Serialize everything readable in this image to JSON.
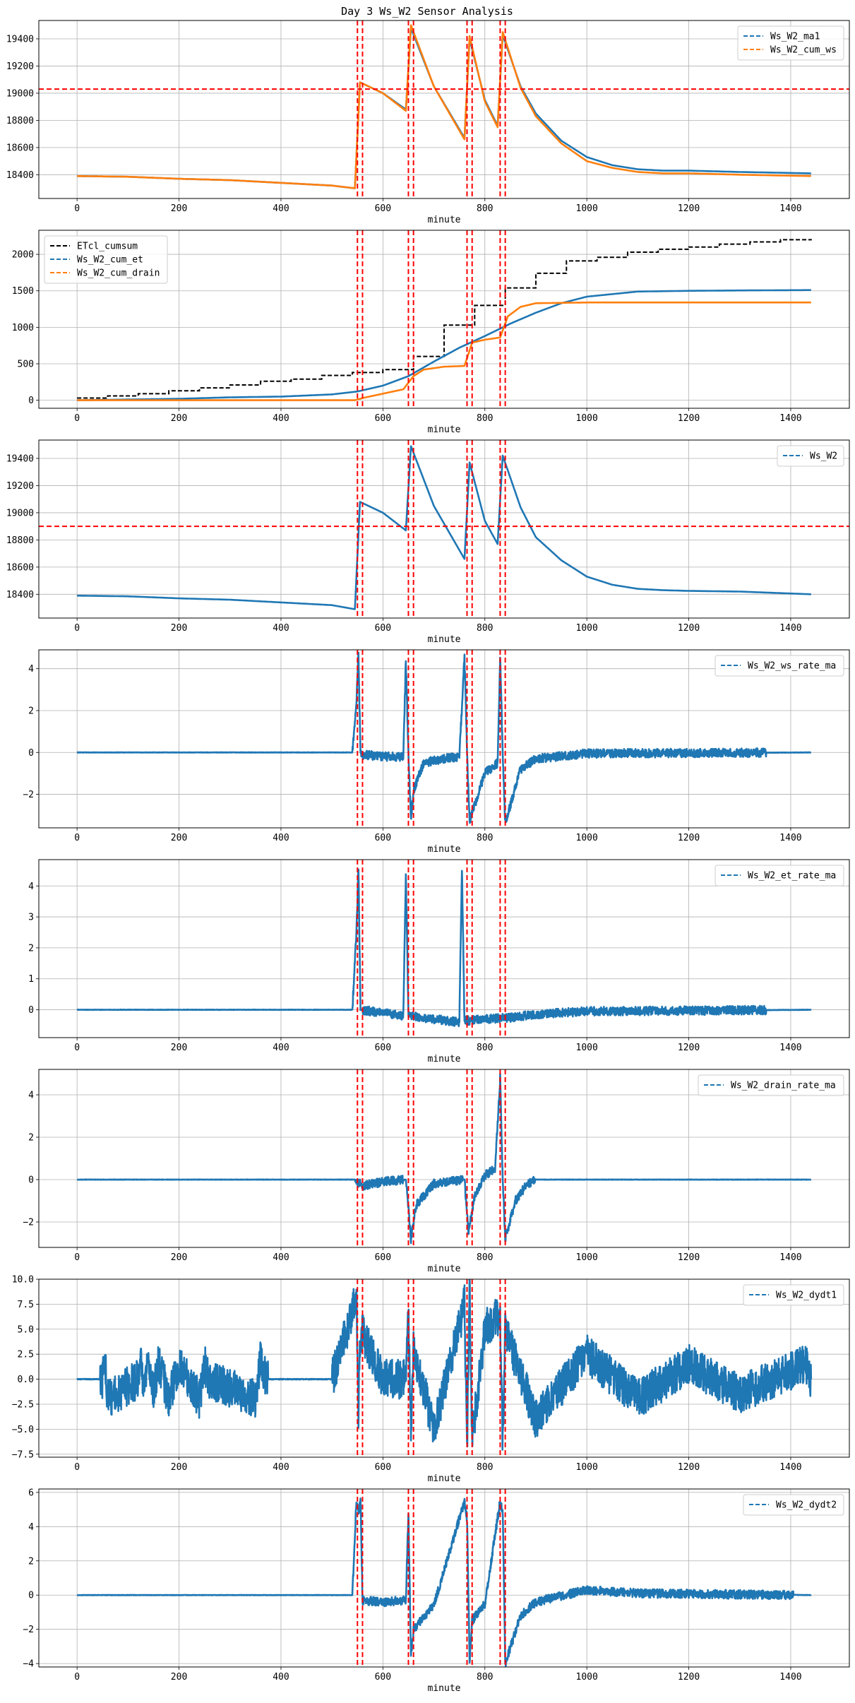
{
  "figure": {
    "title": "Day 3 Ws_W2 Sensor Analysis"
  },
  "colors": {
    "blue": "#1f77b4",
    "orange": "#ff7f0e",
    "black": "#000000",
    "red": "#ff0000",
    "grid": "#b0b0b0"
  },
  "chart_data": [
    {
      "type": "line",
      "xlabel": "minute",
      "xticks": [
        0,
        200,
        400,
        600,
        800,
        1000,
        1200,
        1400
      ],
      "xlim": [
        -75,
        1515
      ],
      "ylim": [
        18225,
        19535
      ],
      "yticks": [
        18400,
        18600,
        18800,
        19000,
        19200,
        19400
      ],
      "ytick_labels": [
        "18400",
        "18600",
        "18800",
        "19000",
        "19200",
        "19400"
      ],
      "legend": "top-right",
      "vlines": [
        550,
        560,
        650,
        660,
        765,
        775,
        830,
        840
      ],
      "hline": 19030,
      "series": [
        {
          "name": "Ws_W2_ma1",
          "color": "blue",
          "style": "dashed",
          "x": [
            0,
            100,
            200,
            300,
            400,
            500,
            545,
            555,
            600,
            645,
            655,
            700,
            760,
            770,
            800,
            825,
            835,
            870,
            900,
            950,
            1000,
            1050,
            1100,
            1150,
            1200,
            1300,
            1440
          ],
          "y": [
            18390,
            18385,
            18370,
            18360,
            18340,
            18320,
            18300,
            19080,
            19000,
            18880,
            19480,
            19050,
            18670,
            19400,
            18950,
            18760,
            19430,
            19050,
            18850,
            18650,
            18530,
            18470,
            18440,
            18430,
            18430,
            18420,
            18410
          ]
        },
        {
          "name": "Ws_W2_cum_ws",
          "color": "orange",
          "style": "dashed",
          "x": [
            0,
            100,
            200,
            300,
            400,
            500,
            545,
            555,
            600,
            645,
            655,
            700,
            760,
            770,
            800,
            825,
            835,
            870,
            900,
            950,
            1000,
            1050,
            1100,
            1150,
            1200,
            1300,
            1440
          ],
          "y": [
            18390,
            18385,
            18370,
            18360,
            18340,
            18320,
            18300,
            19080,
            19000,
            18870,
            19500,
            19050,
            18660,
            19420,
            18940,
            18750,
            19450,
            19040,
            18830,
            18630,
            18500,
            18450,
            18420,
            18410,
            18410,
            18400,
            18390
          ]
        }
      ]
    },
    {
      "type": "line",
      "xlabel": "minute",
      "xticks": [
        0,
        200,
        400,
        600,
        800,
        1000,
        1200,
        1400
      ],
      "xlim": [
        -75,
        1515
      ],
      "ylim": [
        -110,
        2330
      ],
      "yticks": [
        0,
        500,
        1000,
        1500,
        2000
      ],
      "ytick_labels": [
        "0",
        "500",
        "1000",
        "1500",
        "2000"
      ],
      "legend": "top-left",
      "vlines": [
        550,
        560,
        650,
        660,
        765,
        775,
        830,
        840
      ],
      "series": [
        {
          "name": "ETcl_cumsum",
          "color": "black",
          "style": "steps",
          "x": [
            0,
            60,
            120,
            180,
            240,
            300,
            360,
            420,
            480,
            540,
            600,
            660,
            720,
            780,
            840,
            900,
            960,
            1020,
            1080,
            1140,
            1200,
            1260,
            1320,
            1380,
            1440
          ],
          "y": [
            30,
            60,
            90,
            130,
            170,
            210,
            260,
            290,
            340,
            380,
            420,
            600,
            1030,
            1300,
            1540,
            1740,
            1910,
            1960,
            2030,
            2070,
            2100,
            2140,
            2170,
            2200,
            2210
          ]
        },
        {
          "name": "Ws_W2_cum_et",
          "color": "blue",
          "style": "dashed",
          "x": [
            0,
            100,
            200,
            300,
            400,
            500,
            550,
            600,
            650,
            700,
            750,
            800,
            850,
            900,
            950,
            1000,
            1100,
            1200,
            1300,
            1440
          ],
          "y": [
            0,
            10,
            20,
            40,
            50,
            80,
            120,
            200,
            330,
            530,
            720,
            880,
            1050,
            1200,
            1330,
            1420,
            1490,
            1500,
            1505,
            1510
          ]
        },
        {
          "name": "Ws_W2_cum_drain",
          "color": "orange",
          "style": "dashed",
          "x": [
            0,
            545,
            560,
            640,
            660,
            680,
            720,
            760,
            775,
            800,
            830,
            845,
            870,
            900,
            1000,
            1440
          ],
          "y": [
            0,
            0,
            30,
            150,
            330,
            420,
            460,
            470,
            790,
            830,
            860,
            1150,
            1280,
            1330,
            1340,
            1340
          ]
        }
      ]
    },
    {
      "type": "line",
      "xlabel": "minute",
      "xticks": [
        0,
        200,
        400,
        600,
        800,
        1000,
        1200,
        1400
      ],
      "xlim": [
        -75,
        1515
      ],
      "ylim": [
        18225,
        19535
      ],
      "yticks": [
        18400,
        18600,
        18800,
        19000,
        19200,
        19400
      ],
      "ytick_labels": [
        "18400",
        "18600",
        "18800",
        "19000",
        "19200",
        "19400"
      ],
      "legend": "top-right",
      "vlines": [
        550,
        560,
        650,
        660,
        765,
        775,
        830,
        840
      ],
      "hline": 18900,
      "series": [
        {
          "name": "Ws_W2",
          "color": "blue",
          "style": "dashed",
          "x": [
            0,
            100,
            200,
            300,
            400,
            500,
            545,
            555,
            600,
            645,
            655,
            700,
            760,
            770,
            800,
            825,
            835,
            870,
            900,
            950,
            1000,
            1050,
            1100,
            1150,
            1200,
            1300,
            1440
          ],
          "y": [
            18390,
            18385,
            18370,
            18360,
            18340,
            18320,
            18290,
            19080,
            19000,
            18870,
            19490,
            19050,
            18660,
            19370,
            18940,
            18770,
            19420,
            19040,
            18820,
            18650,
            18530,
            18470,
            18440,
            18430,
            18425,
            18420,
            18400
          ]
        }
      ]
    },
    {
      "type": "line",
      "xlabel": "minute",
      "xticks": [
        0,
        200,
        400,
        600,
        800,
        1000,
        1200,
        1400
      ],
      "xlim": [
        -75,
        1515
      ],
      "ylim": [
        -3.6,
        4.9
      ],
      "yticks": [
        -2,
        0,
        2,
        4
      ],
      "ytick_labels": [
        "−2",
        "0",
        "2",
        "4"
      ],
      "legend": "top-right",
      "vlines": [
        550,
        560,
        650,
        660,
        765,
        775,
        830,
        840
      ],
      "series": [
        {
          "name": "Ws_W2_ws_rate_ma",
          "color": "blue",
          "style": "dashed",
          "x": [
            0,
            540,
            548,
            552,
            556,
            560,
            600,
            640,
            645,
            650,
            655,
            660,
            680,
            720,
            750,
            760,
            765,
            770,
            800,
            825,
            830,
            835,
            840,
            870,
            900,
            1000,
            1440
          ],
          "y": [
            0,
            0,
            2.5,
            4.6,
            0,
            -0.1,
            -0.2,
            -0.2,
            4.4,
            0,
            -3.2,
            -1.8,
            -0.5,
            -0.3,
            -0.2,
            4.6,
            0,
            -3.3,
            -1.0,
            -0.5,
            4.5,
            0,
            -3.4,
            -0.8,
            -0.3,
            -0.05,
            0
          ]
        }
      ]
    },
    {
      "type": "line",
      "xlabel": "minute",
      "xticks": [
        0,
        200,
        400,
        600,
        800,
        1000,
        1200,
        1400
      ],
      "xlim": [
        -75,
        1515
      ],
      "ylim": [
        -0.9,
        4.85
      ],
      "yticks": [
        0,
        1,
        2,
        3,
        4
      ],
      "ytick_labels": [
        "0",
        "1",
        "2",
        "3",
        "4"
      ],
      "legend": "top-right",
      "vlines": [
        550,
        560,
        650,
        660,
        765,
        775,
        830,
        840
      ],
      "series": [
        {
          "name": "Ws_W2_et_rate_ma",
          "color": "blue",
          "style": "dashed",
          "x": [
            0,
            540,
            548,
            552,
            556,
            600,
            640,
            645,
            650,
            655,
            700,
            750,
            755,
            760,
            765,
            800,
            850,
            900,
            1000,
            1440
          ],
          "y": [
            0,
            0,
            2.5,
            4.6,
            0,
            -0.1,
            -0.2,
            4.4,
            -0.1,
            -0.2,
            -0.3,
            -0.4,
            4.6,
            -0.35,
            -0.35,
            -0.3,
            -0.25,
            -0.15,
            -0.05,
            0
          ]
        }
      ]
    },
    {
      "type": "line",
      "xlabel": "minute",
      "xticks": [
        0,
        200,
        400,
        600,
        800,
        1000,
        1200,
        1400
      ],
      "xlim": [
        -75,
        1515
      ],
      "ylim": [
        -3.2,
        5.2
      ],
      "yticks": [
        -2,
        0,
        2,
        4
      ],
      "ytick_labels": [
        "−2",
        "0",
        "2",
        "4"
      ],
      "legend": "top-right",
      "vlines": [
        550,
        560,
        650,
        660,
        765,
        775,
        830,
        840
      ],
      "series": [
        {
          "name": "Ws_W2_drain_rate_ma",
          "color": "blue",
          "style": "dashed",
          "x": [
            0,
            545,
            560,
            600,
            645,
            655,
            665,
            700,
            760,
            768,
            780,
            800,
            820,
            830,
            835,
            840,
            860,
            880,
            900,
            1440
          ],
          "y": [
            0,
            0,
            -0.3,
            -0.1,
            0,
            -2.8,
            -1.2,
            -0.2,
            0,
            -2.5,
            -0.8,
            0.2,
            0.5,
            4.8,
            0,
            -2.8,
            -1.0,
            -0.3,
            0,
            0
          ]
        }
      ]
    },
    {
      "type": "line",
      "xlabel": "minute",
      "xticks": [
        0,
        200,
        400,
        600,
        800,
        1000,
        1200,
        1400
      ],
      "xlim": [
        -75,
        1515
      ],
      "ylim": [
        -7.8,
        10.0
      ],
      "yticks": [
        -7.5,
        -5.0,
        -2.5,
        0.0,
        2.5,
        5.0,
        7.5,
        10.0
      ],
      "ytick_labels": [
        "−7.5",
        "−5.0",
        "−2.5",
        "0.0",
        "2.5",
        "5.0",
        "7.5",
        "10.0"
      ],
      "legend": "top-right",
      "vlines": [
        550,
        560,
        650,
        660,
        765,
        775,
        830,
        840
      ],
      "series": [
        {
          "name": "Ws_W2_dydt1",
          "color": "blue",
          "style": "dashed",
          "x": [
            0,
            50,
            55,
            60,
            120,
            125,
            130,
            140,
            150,
            160,
            180,
            200,
            240,
            250,
            260,
            350,
            360,
            370,
            500,
            548,
            552,
            556,
            600,
            645,
            650,
            655,
            660,
            700,
            760,
            765,
            770,
            775,
            800,
            830,
            835,
            840,
            900,
            1000,
            1100,
            1200,
            1300,
            1430,
            1440
          ],
          "y": [
            0,
            0,
            2,
            -2,
            0,
            2,
            -1.5,
            1.8,
            -1.5,
            1.8,
            -2,
            1.5,
            -2,
            1.5,
            0,
            -2,
            2,
            0,
            0,
            8,
            -3,
            5,
            0,
            0,
            6.5,
            -5,
            3,
            -5,
            7.5,
            -7,
            9.5,
            -6,
            5,
            6.5,
            -7,
            5,
            -4,
            2.5,
            -2,
            1.5,
            -1.5,
            1.5,
            0
          ]
        }
      ]
    },
    {
      "type": "line",
      "xlabel": "minute",
      "xticks": [
        0,
        200,
        400,
        600,
        800,
        1000,
        1200,
        1400
      ],
      "xlim": [
        -75,
        1515
      ],
      "ylim": [
        -4.2,
        6.2
      ],
      "yticks": [
        -4,
        -2,
        0,
        2,
        4,
        6
      ],
      "ytick_labels": [
        "−4",
        "−2",
        "0",
        "2",
        "4",
        "6"
      ],
      "legend": "top-right",
      "vlines": [
        550,
        560,
        650,
        660,
        765,
        775,
        830,
        840
      ],
      "series": [
        {
          "name": "Ws_W2_dydt2",
          "color": "blue",
          "style": "dashed",
          "x": [
            0,
            540,
            548,
            552,
            556,
            560,
            600,
            645,
            650,
            655,
            660,
            700,
            760,
            765,
            770,
            775,
            800,
            830,
            835,
            840,
            870,
            900,
            1000,
            1100,
            1440
          ],
          "y": [
            0,
            0,
            5.5,
            4.8,
            5.6,
            -0.3,
            -0.4,
            -0.3,
            4.9,
            -3.5,
            -2.0,
            -0.6,
            5.5,
            4.5,
            -3.8,
            -1.5,
            -0.5,
            5.5,
            4.8,
            -4.0,
            -1.2,
            -0.4,
            0.3,
            0.1,
            0
          ]
        }
      ]
    }
  ]
}
